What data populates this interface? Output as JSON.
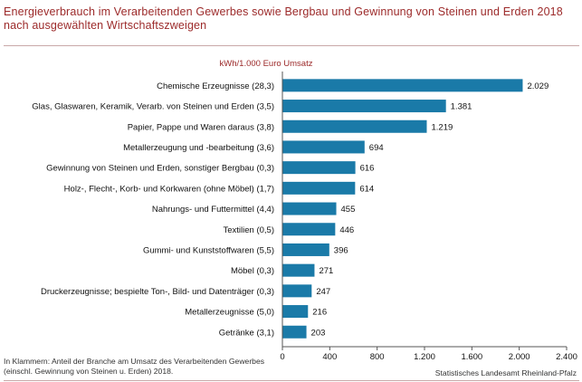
{
  "title_lines": [
    "Energieverbrauch im Verarbeitenden Gewerbes sowie Bergbau und Gewinnung von Steinen und Erden 2018",
    "nach ausgewählten Wirtschaftszweigen"
  ],
  "footnote": "In Klammern: Anteil der Branche am Umsatz des Verarbeitenden Gewerbes (einschl. Gewinnung von Steinen u. Erden) 2018.",
  "source": "Statistisches Landesamt Rheinland-Pfalz",
  "colors": {
    "bar": "#1a7aa8",
    "title": "#9c2a2a",
    "unit_label": "#9c2a2a"
  },
  "chart_data": {
    "type": "bar",
    "orientation": "horizontal",
    "unit_label": "kWh/1.000 Euro Umsatz",
    "categories": [
      "Chemische Erzeugnisse (28,3)",
      "Glas, Glaswaren, Keramik, Verarb. von Steinen und Erden (3,5)",
      "Papier, Pappe und Waren daraus (3,8)",
      "Metallerzeugung und -bearbeitung (3,6)",
      "Gewinnung von Steinen und Erden, sonstiger Bergbau (0,3)",
      "Holz-, Flecht-, Korb- und Korkwaren (ohne Möbel) (1,7)",
      "Nahrungs- und Futtermittel (4,4)",
      "Textilien (0,5)",
      "Gummi- und Kunststoffwaren (5,5)",
      "Möbel (0,3)",
      "Druckerzeugnisse; bespielte Ton-, Bild- und Datenträger (0,3)",
      "Metallerzeugnisse (5,0)",
      "Getränke (3,1)"
    ],
    "values": [
      2029,
      1381,
      1219,
      694,
      616,
      614,
      455,
      446,
      396,
      271,
      247,
      216,
      203
    ],
    "value_labels": [
      "2.029",
      "1.381",
      "1.219",
      "694",
      "616",
      "614",
      "455",
      "446",
      "396",
      "271",
      "247",
      "216",
      "203"
    ],
    "xlim": [
      0,
      2400
    ],
    "x_ticks": [
      0,
      400,
      800,
      1200,
      1600,
      2000,
      2400
    ],
    "x_tick_labels": [
      "0",
      "400",
      "800",
      "1.200",
      "1.600",
      "2.000",
      "2.400"
    ],
    "grid": false
  }
}
